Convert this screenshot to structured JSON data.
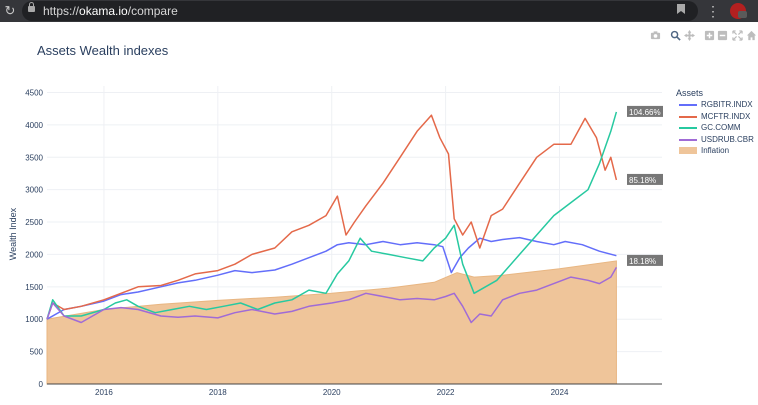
{
  "browser": {
    "url_scheme": "https://",
    "url_host": "okama.io",
    "url_path": "/compare"
  },
  "toolbar": {
    "icons": [
      "camera-icon",
      "zoom-icon",
      "pan-icon",
      "zoom-in-icon",
      "zoom-out-icon",
      "autoscale-icon",
      "reset-axes-icon"
    ]
  },
  "colors": {
    "rgbitr": "#636efa",
    "mcftr": "#e4694a",
    "gc": "#27c9a0",
    "usdrub": "#a06bd6",
    "inflation": "#efc59a",
    "axis_text": "#2a3f5f",
    "annotation_bg": "#777777"
  },
  "chart_data": {
    "type": "line",
    "title": "Assets Wealth indexes",
    "ylabel": "Wealth Index",
    "xlabel": "",
    "ylim": [
      0,
      4600
    ],
    "xlim": [
      2015.0,
      2025.8
    ],
    "yticks": [
      0,
      500,
      1000,
      1500,
      2000,
      2500,
      3000,
      3500,
      4000,
      4500
    ],
    "xticks": [
      2016,
      2018,
      2020,
      2022,
      2024
    ],
    "grid": true,
    "legend_title": "Assets",
    "legend_position": "right",
    "series": [
      {
        "name": "RGBITR.INDX",
        "color_key": "rgbitr",
        "x": [
          2015.0,
          2015.3,
          2015.6,
          2016.0,
          2016.3,
          2016.6,
          2017.0,
          2017.3,
          2017.6,
          2018.0,
          2018.3,
          2018.6,
          2019.0,
          2019.3,
          2019.6,
          2019.9,
          2020.1,
          2020.3,
          2020.6,
          2020.9,
          2021.2,
          2021.5,
          2021.8,
          2021.95,
          2022.1,
          2022.25,
          2022.4,
          2022.6,
          2022.8,
          2023.0,
          2023.3,
          2023.6,
          2023.9,
          2024.1,
          2024.4,
          2024.7,
          2025.0
        ],
        "y": [
          1000,
          1150,
          1200,
          1280,
          1380,
          1420,
          1500,
          1560,
          1600,
          1680,
          1750,
          1720,
          1760,
          1850,
          1950,
          2050,
          2150,
          2180,
          2150,
          2200,
          2150,
          2180,
          2150,
          2120,
          1720,
          1950,
          2100,
          2250,
          2200,
          2230,
          2260,
          2200,
          2150,
          2200,
          2150,
          2050,
          1980
        ]
      },
      {
        "name": "MCFTR.INDX",
        "color_key": "mcftr",
        "x": [
          2015.0,
          2015.1,
          2015.3,
          2015.6,
          2016.0,
          2016.3,
          2016.6,
          2017.0,
          2017.3,
          2017.6,
          2018.0,
          2018.3,
          2018.6,
          2019.0,
          2019.3,
          2019.6,
          2019.9,
          2020.1,
          2020.25,
          2020.4,
          2020.6,
          2020.9,
          2021.2,
          2021.5,
          2021.75,
          2021.9,
          2022.05,
          2022.15,
          2022.3,
          2022.45,
          2022.6,
          2022.8,
          2023.0,
          2023.3,
          2023.6,
          2023.9,
          2024.2,
          2024.45,
          2024.65,
          2024.8,
          2024.9,
          2025.0
        ],
        "y": [
          1000,
          1250,
          1150,
          1200,
          1300,
          1400,
          1500,
          1520,
          1600,
          1700,
          1750,
          1850,
          2000,
          2100,
          2350,
          2450,
          2600,
          2900,
          2300,
          2500,
          2750,
          3100,
          3500,
          3900,
          4150,
          3800,
          3550,
          2550,
          2300,
          2500,
          2100,
          2600,
          2700,
          3100,
          3500,
          3700,
          3700,
          4100,
          3800,
          3300,
          3500,
          3150
        ]
      },
      {
        "name": "GC.COMM",
        "color_key": "gc",
        "x": [
          2015.0,
          2015.1,
          2015.3,
          2015.6,
          2016.0,
          2016.2,
          2016.4,
          2016.6,
          2016.9,
          2017.2,
          2017.5,
          2017.8,
          2018.1,
          2018.4,
          2018.7,
          2019.0,
          2019.3,
          2019.6,
          2019.9,
          2020.1,
          2020.3,
          2020.5,
          2020.7,
          2021.0,
          2021.3,
          2021.6,
          2021.8,
          2022.0,
          2022.15,
          2022.3,
          2022.5,
          2022.7,
          2022.9,
          2023.1,
          2023.3,
          2023.6,
          2023.9,
          2024.2,
          2024.5,
          2024.7,
          2024.9,
          2025.0
        ],
        "y": [
          1000,
          1300,
          1050,
          1050,
          1150,
          1250,
          1300,
          1200,
          1100,
          1150,
          1200,
          1150,
          1200,
          1250,
          1150,
          1250,
          1300,
          1450,
          1400,
          1700,
          1900,
          2250,
          2050,
          2000,
          1950,
          1900,
          2100,
          2250,
          2450,
          1850,
          1400,
          1500,
          1600,
          1800,
          2000,
          2300,
          2600,
          2800,
          3000,
          3400,
          3900,
          4200
        ]
      },
      {
        "name": "USDRUB.CBR",
        "color_key": "usdrub",
        "x": [
          2015.0,
          2015.1,
          2015.3,
          2015.6,
          2016.0,
          2016.3,
          2016.6,
          2017.0,
          2017.3,
          2017.6,
          2018.0,
          2018.3,
          2018.6,
          2019.0,
          2019.3,
          2019.6,
          2020.0,
          2020.3,
          2020.6,
          2020.9,
          2021.2,
          2021.5,
          2021.8,
          2022.0,
          2022.15,
          2022.3,
          2022.45,
          2022.6,
          2022.8,
          2023.0,
          2023.3,
          2023.6,
          2023.9,
          2024.2,
          2024.5,
          2024.7,
          2024.9,
          2025.0
        ],
        "y": [
          1000,
          1250,
          1050,
          950,
          1150,
          1180,
          1150,
          1050,
          1030,
          1050,
          1020,
          1100,
          1150,
          1080,
          1120,
          1200,
          1250,
          1300,
          1400,
          1350,
          1300,
          1320,
          1300,
          1350,
          1400,
          1200,
          950,
          1080,
          1050,
          1300,
          1400,
          1450,
          1550,
          1650,
          1600,
          1550,
          1650,
          1800
        ]
      },
      {
        "name": "Inflation",
        "color_key": "inflation",
        "fill": "tozeroy",
        "x": [
          2015.0,
          2016.0,
          2017.0,
          2018.0,
          2019.0,
          2020.0,
          2021.0,
          2021.8,
          2022.2,
          2022.5,
          2023.0,
          2024.0,
          2025.0
        ],
        "y": [
          1000,
          1150,
          1230,
          1290,
          1340,
          1400,
          1480,
          1570,
          1720,
          1650,
          1680,
          1780,
          1900
        ]
      }
    ],
    "annotations": [
      {
        "text": "104.66%",
        "y": 4200
      },
      {
        "text": "85.18%",
        "y": 3150
      },
      {
        "text": "18.18%",
        "y": 1900
      }
    ]
  }
}
